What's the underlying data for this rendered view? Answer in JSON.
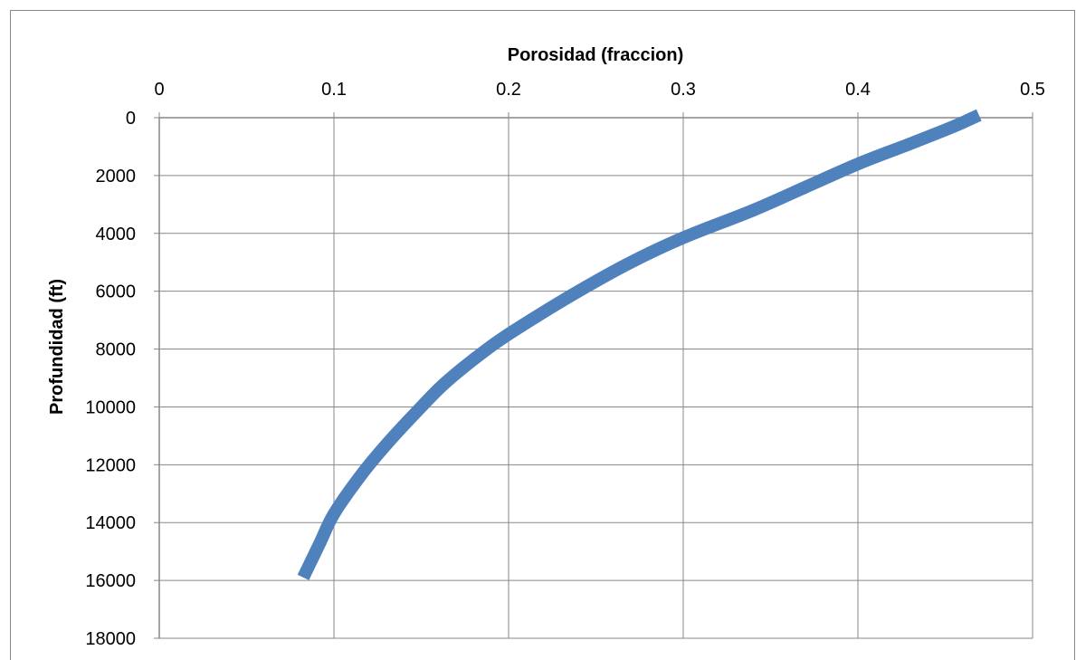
{
  "chart_data": {
    "type": "line",
    "title": "",
    "xlabel": "Porosidad (fraccion)",
    "ylabel": "Profundidad (ft)",
    "x_axis_position": "top",
    "y_axis_reversed": true,
    "xlim": [
      0,
      0.5
    ],
    "ylim": [
      0,
      18000
    ],
    "xticks": [
      "0",
      "0.1",
      "0.2",
      "0.3",
      "0.4",
      "0.5"
    ],
    "yticks": [
      "0",
      "2000",
      "4000",
      "6000",
      "8000",
      "10000",
      "12000",
      "14000",
      "16000",
      "18000"
    ],
    "grid": true,
    "legend": "none",
    "series": [
      {
        "color": "#4f81bd",
        "points": [
          {
            "x": 0.466,
            "y": 0
          },
          {
            "x": 0.455,
            "y": 300
          },
          {
            "x": 0.43,
            "y": 900
          },
          {
            "x": 0.4,
            "y": 1600
          },
          {
            "x": 0.37,
            "y": 2400
          },
          {
            "x": 0.34,
            "y": 3200
          },
          {
            "x": 0.3,
            "y": 4150
          },
          {
            "x": 0.27,
            "y": 5000
          },
          {
            "x": 0.24,
            "y": 6000
          },
          {
            "x": 0.21,
            "y": 7100
          },
          {
            "x": 0.19,
            "y": 7900
          },
          {
            "x": 0.165,
            "y": 9100
          },
          {
            "x": 0.15,
            "y": 10000
          },
          {
            "x": 0.13,
            "y": 11300
          },
          {
            "x": 0.115,
            "y": 12400
          },
          {
            "x": 0.1,
            "y": 13700
          },
          {
            "x": 0.092,
            "y": 14700
          },
          {
            "x": 0.084,
            "y": 15700
          }
        ]
      }
    ]
  }
}
